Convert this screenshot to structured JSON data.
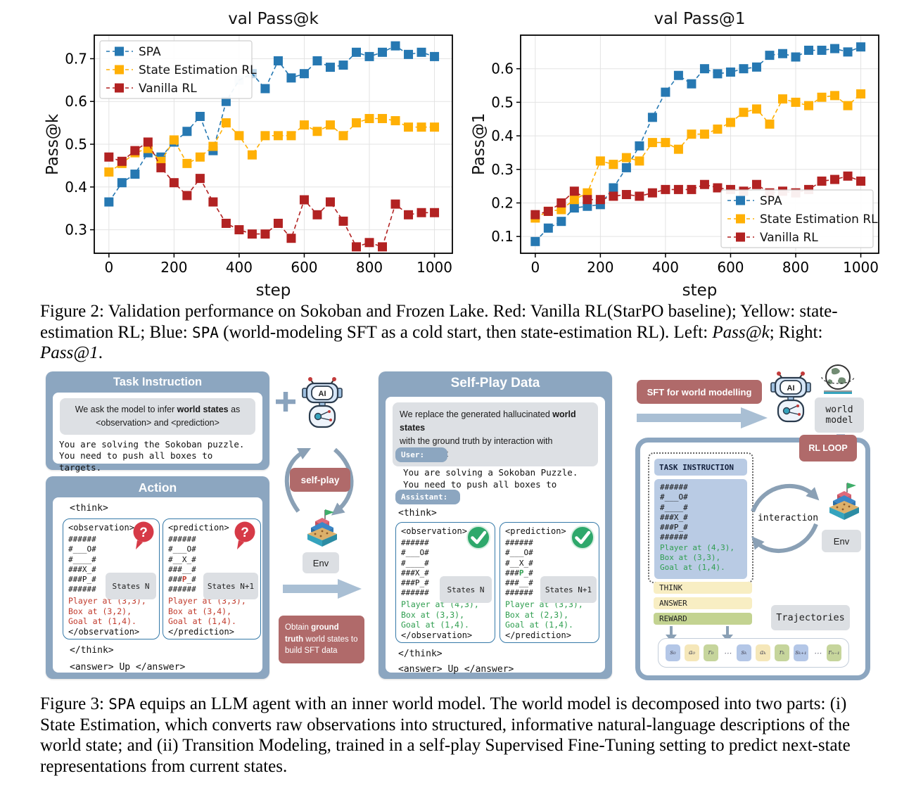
{
  "chart_data": [
    {
      "type": "line",
      "title": "val Pass@k",
      "xlabel": "step",
      "ylabel": "Pass@k",
      "xlim": [
        -45,
        1055
      ],
      "ylim": [
        0.245,
        0.755
      ],
      "xticks": [
        0,
        200,
        400,
        600,
        800,
        1000
      ],
      "yticks": [
        0.3,
        0.4,
        0.5,
        0.6,
        0.7
      ],
      "grid": true,
      "legend_pos": "top-left",
      "x": [
        0,
        40,
        80,
        120,
        160,
        200,
        240,
        280,
        320,
        360,
        400,
        440,
        480,
        520,
        560,
        600,
        640,
        680,
        720,
        760,
        800,
        840,
        880,
        920,
        960,
        1000
      ],
      "series": [
        {
          "name": "SPA",
          "color": "#2678b2",
          "marker": "square",
          "linestyle": "dashed",
          "faded_x": [
            400,
            440
          ],
          "values": [
            0.365,
            0.41,
            0.43,
            0.48,
            0.47,
            0.505,
            0.53,
            0.565,
            0.485,
            0.6,
            0.65,
            0.665,
            0.63,
            0.695,
            0.655,
            0.665,
            0.695,
            0.68,
            0.685,
            0.715,
            0.705,
            0.715,
            0.73,
            0.71,
            0.715,
            0.705
          ]
        },
        {
          "name": "State Estimation RL",
          "color": "#ffb005",
          "marker": "square",
          "linestyle": "dashed",
          "values": [
            0.435,
            0.455,
            0.48,
            0.49,
            0.46,
            0.51,
            0.455,
            0.47,
            0.495,
            0.55,
            0.52,
            0.475,
            0.52,
            0.52,
            0.52,
            0.545,
            0.53,
            0.545,
            0.52,
            0.55,
            0.56,
            0.56,
            0.555,
            0.54,
            0.54,
            0.54
          ]
        },
        {
          "name": "Vanilla RL",
          "color": "#b22222",
          "marker": "square",
          "linestyle": "dashed",
          "values": [
            0.47,
            0.46,
            0.485,
            0.505,
            0.445,
            0.41,
            0.38,
            0.42,
            0.365,
            0.315,
            0.3,
            0.29,
            0.29,
            0.315,
            0.28,
            0.37,
            0.335,
            0.365,
            0.32,
            0.26,
            0.27,
            0.26,
            0.36,
            0.335,
            0.34,
            0.34
          ]
        }
      ]
    },
    {
      "type": "line",
      "title": "val Pass@1",
      "xlabel": "step",
      "ylabel": "Pass@1",
      "xlim": [
        -45,
        1055
      ],
      "ylim": [
        0.05,
        0.7
      ],
      "xticks": [
        0,
        200,
        400,
        600,
        800,
        1000
      ],
      "yticks": [
        0.1,
        0.2,
        0.3,
        0.4,
        0.5,
        0.6
      ],
      "grid": true,
      "legend_pos": "bottom-right",
      "x": [
        0,
        40,
        80,
        120,
        160,
        200,
        240,
        280,
        320,
        360,
        400,
        440,
        480,
        520,
        560,
        600,
        640,
        680,
        720,
        760,
        800,
        840,
        880,
        920,
        960,
        1000
      ],
      "series": [
        {
          "name": "SPA",
          "color": "#2678b2",
          "marker": "square",
          "linestyle": "dashed",
          "values": [
            0.085,
            0.125,
            0.145,
            0.185,
            0.19,
            0.195,
            0.245,
            0.305,
            0.37,
            0.455,
            0.53,
            0.58,
            0.555,
            0.6,
            0.585,
            0.59,
            0.6,
            0.605,
            0.64,
            0.645,
            0.635,
            0.655,
            0.655,
            0.66,
            0.65,
            0.665
          ]
        },
        {
          "name": "State Estimation RL",
          "color": "#ffb005",
          "marker": "square",
          "linestyle": "dashed",
          "values": [
            0.155,
            0.175,
            0.18,
            0.21,
            0.23,
            0.325,
            0.315,
            0.335,
            0.325,
            0.38,
            0.38,
            0.36,
            0.405,
            0.405,
            0.42,
            0.44,
            0.47,
            0.48,
            0.435,
            0.51,
            0.5,
            0.49,
            0.515,
            0.52,
            0.49,
            0.525
          ]
        },
        {
          "name": "Vanilla RL",
          "color": "#b22222",
          "marker": "square",
          "linestyle": "dashed",
          "values": [
            0.165,
            0.175,
            0.2,
            0.235,
            0.21,
            0.21,
            0.22,
            0.225,
            0.22,
            0.23,
            0.24,
            0.24,
            0.24,
            0.255,
            0.245,
            0.24,
            0.235,
            0.255,
            0.23,
            0.235,
            0.23,
            0.24,
            0.265,
            0.27,
            0.28,
            0.265
          ]
        }
      ]
    }
  ],
  "figure2_caption": [
    {
      "t": "Figure 2: Validation performance on Sokoban and Frozen Lake. Red: Vanilla RL(StarPO baseline); Yellow: state-estimation RL; Blue: "
    },
    {
      "t": "SPA",
      "st": "m"
    },
    {
      "t": " (world-modeling SFT as a cold start, then state-estimation RL). Left: "
    },
    {
      "t": "Pass@k",
      "st": "i"
    },
    {
      "t": "; Right: "
    },
    {
      "t": "Pass@1",
      "st": "i"
    },
    {
      "t": "."
    }
  ],
  "figure3_caption": [
    {
      "t": "Figure 3: "
    },
    {
      "t": "SPA",
      "st": "m"
    },
    {
      "t": " equips an LLM agent with an inner world model. The world model is decomposed into two parts: (i) State Estimation, which converts raw observations into structured, informative natural-language descriptions of the world state; and (ii) Transition Modeling, trained in a self-play Supervised Fine-Tuning setting to predict next-state representations from current states."
    }
  ],
  "diagram": {
    "task_panel": {
      "title": "Task Instruction",
      "intro": [
        {
          "t": "We ask the model to infer "
        },
        {
          "t": "world states",
          "st": "b"
        },
        {
          "t": " as\n<observation> and <prediction>"
        }
      ],
      "body_lines": [
        "You are solving the Sokoban puzzle.",
        "You need to push all boxes to targets."
      ]
    },
    "action_panel": {
      "title": "Action",
      "think_open": "<think>",
      "think_close": "</think>",
      "answer": "<answer> Up </answer>",
      "observation": {
        "tag_open": "<observation>",
        "tag_close": "</observation>",
        "grid": [
          "######",
          "#___O#",
          "#____#",
          "###X_#",
          "###P_#",
          "######"
        ],
        "grid_hl": null,
        "state": [
          "Player at (3,3),",
          "Box at (3,2),",
          "Goal at (1,4)."
        ],
        "state_label": "States N"
      },
      "prediction": {
        "tag_open": "<prediction>",
        "tag_close": "</prediction>",
        "grid": [
          "######",
          "#___O#",
          "#__X_#",
          "###__#",
          "###P_#",
          "######"
        ],
        "grid_hl": {
          "line": 4,
          "color": "#c0392b"
        },
        "state": [
          "Player at (3,3),",
          "Box at (3,4),",
          "Goal at (1,4)."
        ],
        "state_label": "States N+1"
      }
    },
    "mid": {
      "selfplay_badge": "self-play",
      "env_label": "Env",
      "obtain": [
        {
          "t": "Obtain "
        },
        {
          "t": "ground truth",
          "st": "b"
        },
        {
          "t": " world states to build SFT data"
        }
      ]
    },
    "selfplay_panel": {
      "title": "Self-Play Data",
      "intro": [
        {
          "t": "We replace the generated hallucinated "
        },
        {
          "t": "world states",
          "st": "b"
        },
        {
          "t": "\nwith the ground truth by interaction with environment"
        }
      ],
      "user_label": "User:",
      "user_lines": [
        "You are solving a Sokoban Puzzle.",
        "You need to push all boxes to targets."
      ],
      "assistant_label": "Assistant:",
      "think_open": "<think>",
      "think_close": "</think>",
      "answer": "<answer> Up </answer>",
      "observation": {
        "tag_open": "<observation>",
        "tag_close": "</observation>",
        "grid": [
          "######",
          "#___O#",
          "#____#",
          "###X_#",
          "###P_#",
          "######"
        ],
        "grid_hl": null,
        "state": [
          "Player at (4,3),",
          "Box at (3,3),",
          "Goal at (1,4)."
        ],
        "state_label": "States N"
      },
      "prediction": {
        "tag_open": "<prediction>",
        "tag_close": "</prediction>",
        "grid": [
          "######",
          "#___O#",
          "#__X_#",
          "###P_#",
          "###__#",
          "######"
        ],
        "grid_hl": {
          "line": 3,
          "color": "#2f9e4f"
        },
        "state": [
          "Player at (3,3),",
          "Box at (2,3),",
          "Goal at (1,4)."
        ],
        "state_label": "States N+1"
      }
    },
    "right": {
      "sft_label": "SFT for world modelling",
      "world_model_lines": [
        "world",
        "model"
      ],
      "rl_loop": "RL LOOP",
      "task_instruction": "TASK INSTRUCTION",
      "gridbox": {
        "grid": [
          "######",
          "#___O#",
          "#____#",
          "###X_#",
          "###P_#",
          "######"
        ],
        "grid_hl": null
      },
      "state": [
        "Player at (4,3),",
        "Box at (3,3),",
        "Goal at (1,4)."
      ],
      "interaction": "interaction",
      "env_label": "Env",
      "think": "THINK",
      "answer": "ANSWER",
      "reward": "REWARD",
      "trajectories": "Trajectories",
      "tokens": [
        {
          "label": "s₀",
          "c": "blue"
        },
        {
          "label": "a₀",
          "c": "yellow"
        },
        {
          "label": "r₀",
          "c": "green"
        },
        {
          "label": "⋯",
          "c": "none"
        },
        {
          "label": "sₖ",
          "c": "blue"
        },
        {
          "label": "aₖ",
          "c": "yellow"
        },
        {
          "label": "rₖ",
          "c": "green"
        },
        {
          "label": "sₖ₊₁",
          "c": "blue"
        },
        {
          "label": "⋯",
          "c": "none"
        },
        {
          "label": "rₙ₋₁",
          "c": "green"
        }
      ]
    },
    "colors": {
      "panel_blue": "#8ca6c0",
      "badge_red": "#b06a6a",
      "chip_gray": "#dcdfe3",
      "rl_blue": "#b9cbe4",
      "think_yellow": "#f8eec3",
      "reward_green": "#c3d391",
      "state_red": "#c0392b",
      "state_green": "#2f9e4f"
    }
  }
}
